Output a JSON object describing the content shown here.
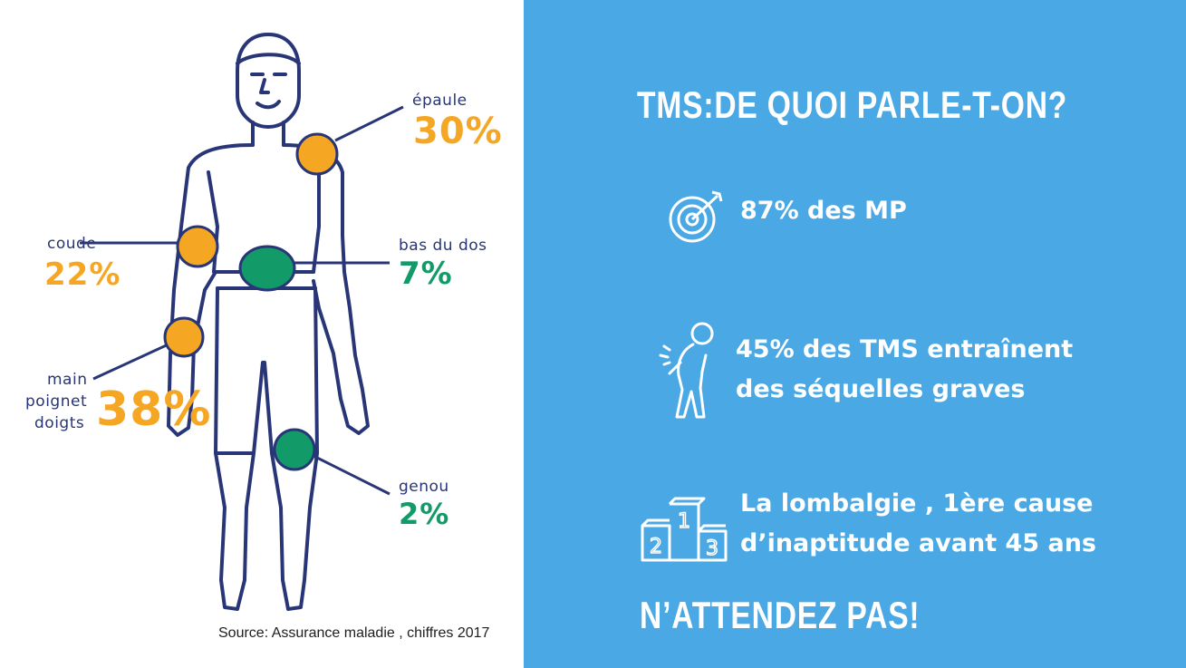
{
  "left": {
    "labels": {
      "epaule": "épaule",
      "epaule_pct": "30%",
      "coude": "coude",
      "coude_pct": "22%",
      "bas_dos": "bas du dos",
      "bas_dos_pct": "7%",
      "main_line1": "main",
      "main_line2": "poignet",
      "main_line3": "doigts",
      "main_pct": "38%",
      "genou": "genou",
      "genou_pct": "2%"
    },
    "source": "Source: Assurance maladie , chiffres 2017",
    "colors": {
      "outline": "#283577",
      "orange": "#f5a623",
      "green": "#129a69"
    }
  },
  "right": {
    "title": "TMS:DE QUOI PARLE-T-ON?",
    "facts": [
      {
        "icon": "target-icon",
        "line1": "87% des MP",
        "line2": ""
      },
      {
        "icon": "back-pain-icon",
        "line1": "45% des TMS entraînent",
        "line2": "des séquelles graves"
      },
      {
        "icon": "podium-icon",
        "line1": "La lombalgie , 1ère cause",
        "line2": "d’inaptitude avant 45 ans"
      }
    ],
    "cta": "N’ATTENDEZ PAS!",
    "colors": {
      "background": "#4aa8e4",
      "text": "#ffffff"
    }
  }
}
